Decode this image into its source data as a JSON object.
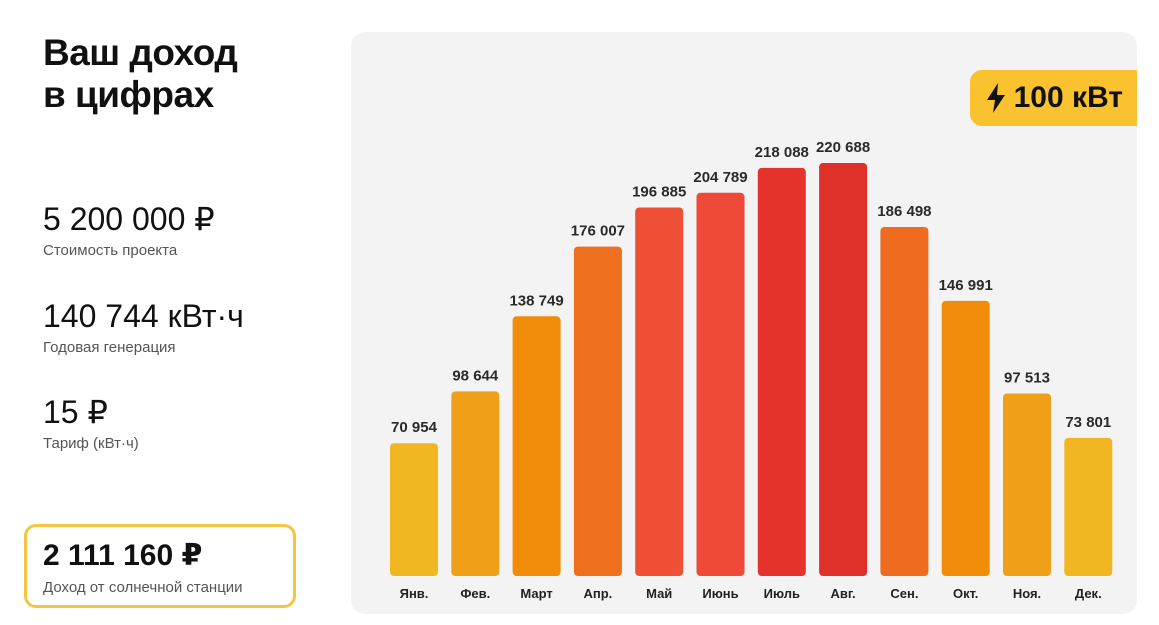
{
  "header": {
    "title_line1": "Ваш доход",
    "title_line2": "в цифрах"
  },
  "stats": [
    {
      "value": "5 200 000 ₽",
      "label": "Стоимость проекта"
    },
    {
      "value": "140 744 кВт·ч",
      "label": "Годовая генерация"
    },
    {
      "value": "15 ₽",
      "label": "Тариф (кВт·ч)"
    }
  ],
  "income": {
    "value": "2 111 160 ₽",
    "label": "Доход от солнечной станции"
  },
  "badge": {
    "icon": "lightning-icon",
    "text": "100 кВт",
    "color": "#f9c22e"
  },
  "chart_data": {
    "type": "bar",
    "title": "",
    "xlabel": "",
    "ylabel": "",
    "categories": [
      "Янв.",
      "Фев.",
      "Март",
      "Апр.",
      "Май",
      "Июнь",
      "Июль",
      "Авг.",
      "Сен.",
      "Окт.",
      "Ноя.",
      "Дек."
    ],
    "values": [
      70954,
      98644,
      138749,
      176007,
      196885,
      204789,
      218088,
      220688,
      186498,
      146991,
      97513,
      73801
    ],
    "value_labels": [
      "70 954",
      "98 644",
      "138 749",
      "176 007",
      "196 885",
      "204 789",
      "218 088",
      "220 688",
      "186 498",
      "146 991",
      "97 513",
      "73 801"
    ],
    "colors": [
      "#f0b722",
      "#f0a018",
      "#f08c0a",
      "#ee6f1e",
      "#ef4f35",
      "#ef4a38",
      "#e5332b",
      "#e0302a",
      "#ee6b1f",
      "#f08c0a",
      "#f0a018",
      "#f0b722"
    ],
    "ylim": [
      0,
      220688
    ],
    "grid": false,
    "legend": "none"
  }
}
